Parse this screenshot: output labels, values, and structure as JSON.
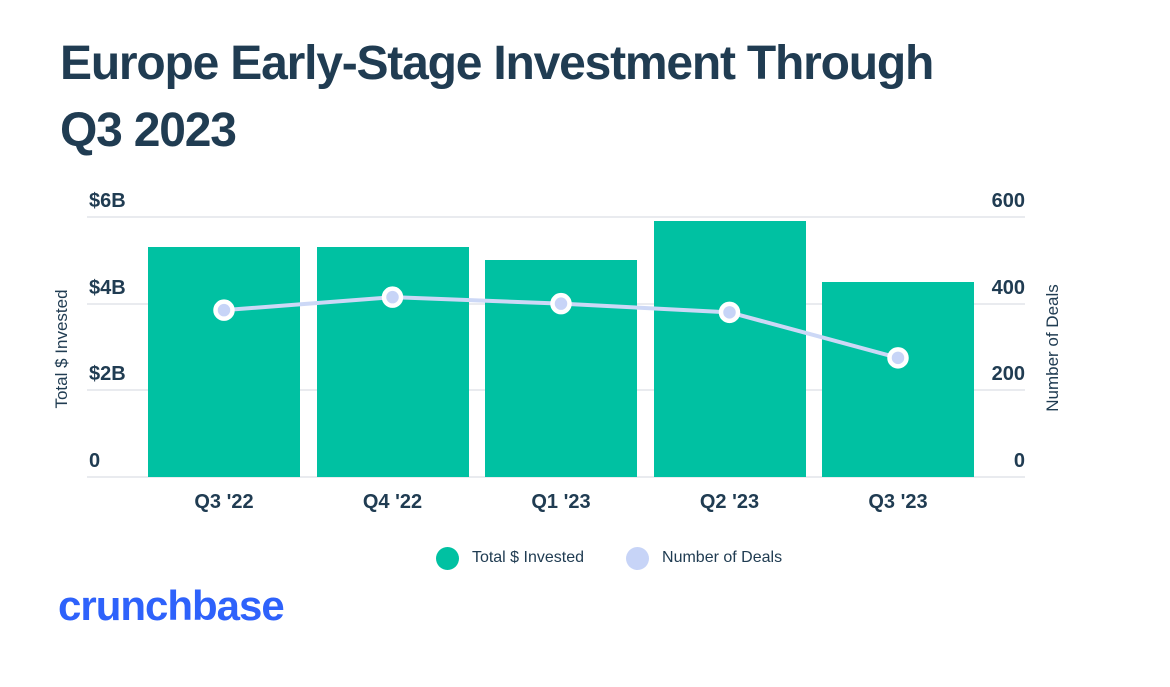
{
  "title_lines": [
    "Europe Early-Stage Investment Through",
    "Q3 2023"
  ],
  "logo_text": "crunchbase",
  "colors": {
    "title_text": "#203c52",
    "axis_text": "#203c52",
    "bar_teal": "#00c1a2",
    "line_lavender": "#ccd8f6",
    "dot_fill": "#c7d4f7",
    "dot_ring": "#ffffff",
    "gridline": "#e9ebef",
    "logo_blue": "#2e62fb",
    "background": "#ffffff"
  },
  "legend": {
    "items": [
      {
        "label": "Total $ Invested",
        "color": "#00c1a2"
      },
      {
        "label": "Number of Deals",
        "color": "#c7d4f7"
      }
    ]
  },
  "chart_data": {
    "type": "combo-bar-line",
    "title": "Europe Early-Stage Investment Through Q3 2023",
    "categories": [
      "Q3 '22",
      "Q4 '22",
      "Q1 '23",
      "Q2 '23",
      "Q3 '23"
    ],
    "series": [
      {
        "name": "Total $ Invested",
        "type": "bar",
        "axis": "left",
        "unit": "USD billions",
        "values": [
          5.3,
          5.3,
          5.0,
          5.9,
          4.5
        ],
        "color": "#00c1a2"
      },
      {
        "name": "Number of Deals",
        "type": "line",
        "axis": "right",
        "unit": "deals",
        "values": [
          385,
          415,
          400,
          380,
          275
        ],
        "color": "#ccd8f6"
      }
    ],
    "ylabel_left": "Total $ Invested",
    "ylabel_right": "Number of Deals",
    "yticks_left": [
      "$6B",
      "$4B",
      "$2B",
      "0"
    ],
    "yticks_right": [
      "600",
      "400",
      "200",
      "0"
    ],
    "ylim_left": [
      0,
      6
    ],
    "ylim_right": [
      0,
      600
    ],
    "grid": "horizontal",
    "legend_position": "bottom"
  }
}
